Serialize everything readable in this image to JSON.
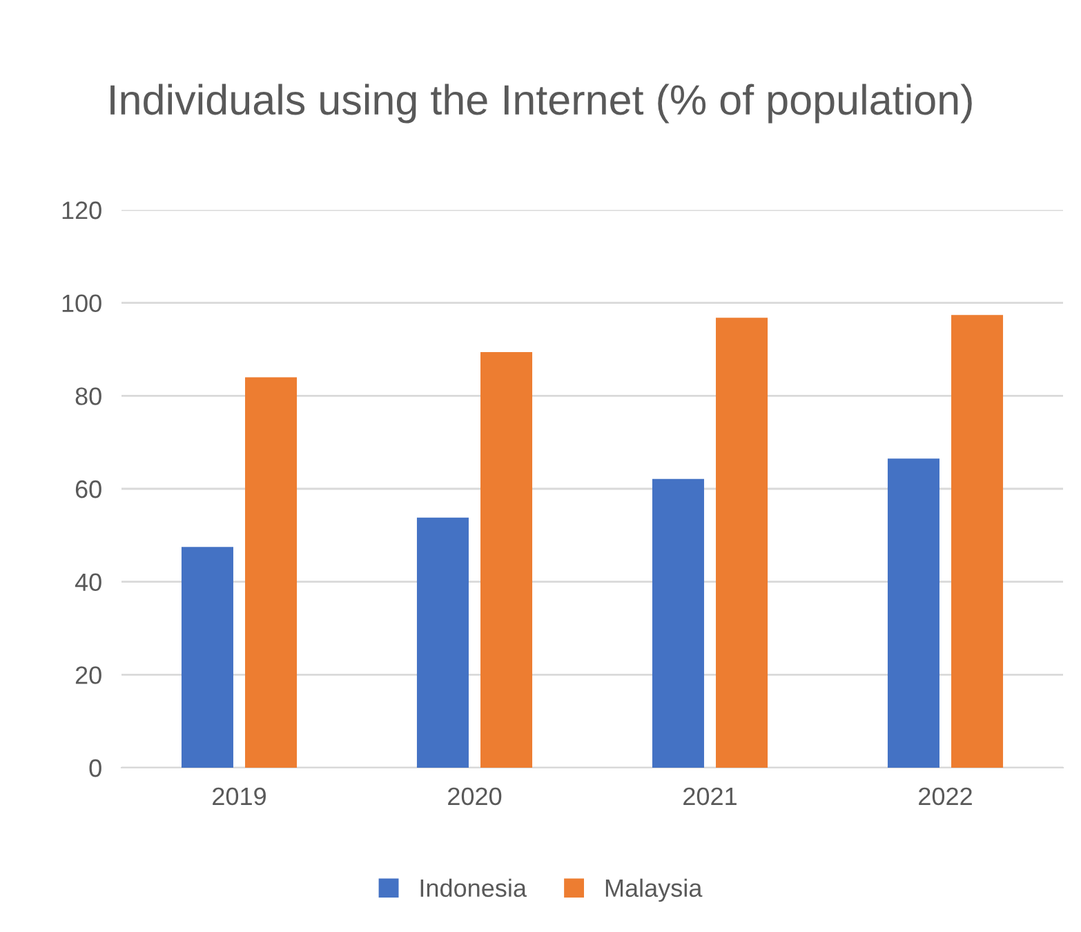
{
  "chart_data": {
    "type": "bar",
    "title": "Individuals using the Internet (% of population)",
    "categories": [
      "2019",
      "2020",
      "2021",
      "2022"
    ],
    "series": [
      {
        "name": "Indonesia",
        "color": "#4472c4",
        "values": [
          47.5,
          53.8,
          62.1,
          66.5
        ]
      },
      {
        "name": "Malaysia",
        "color": "#ed7d31",
        "values": [
          84.0,
          89.4,
          96.8,
          97.4
        ]
      }
    ],
    "ylim": [
      0,
      120
    ],
    "yticks": [
      0,
      20,
      40,
      60,
      80,
      100,
      120
    ],
    "grid": "y",
    "legend": "bottom"
  }
}
